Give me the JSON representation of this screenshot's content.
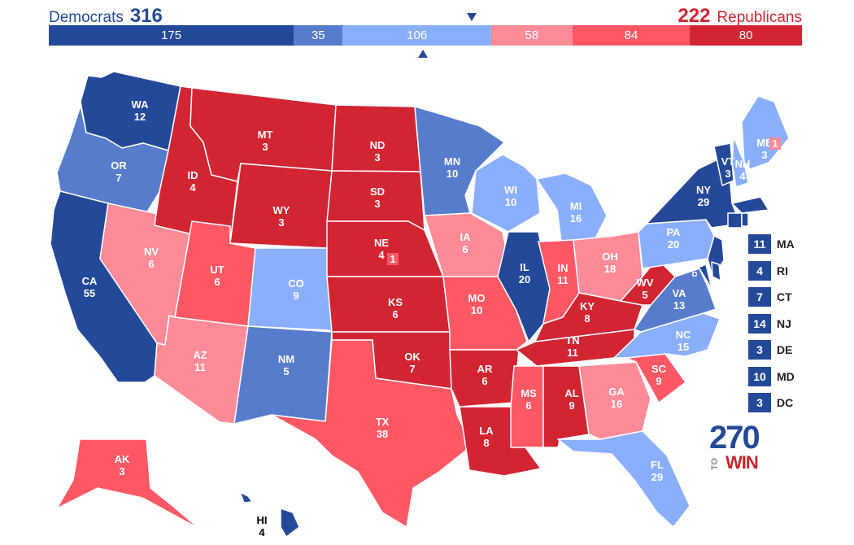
{
  "header": {
    "dem_label": "Democrats",
    "dem_total": "316",
    "rep_total": "222",
    "rep_label": "Republicans"
  },
  "bar_segments": [
    {
      "value": 175,
      "label": "175",
      "color": "#244999"
    },
    {
      "value": 35,
      "label": "35",
      "color": "#577CCC"
    },
    {
      "value": 106,
      "label": "106",
      "color": "#8AAFFF"
    },
    {
      "value": 58,
      "label": "58",
      "color": "#FF8B98"
    },
    {
      "value": 84,
      "label": "84",
      "color": "#FF5865"
    },
    {
      "value": 80,
      "label": "80",
      "color": "#D22532"
    }
  ],
  "states": [
    {
      "abbr": "WA",
      "ev": "12",
      "rating": "safe-d",
      "color": "#244999"
    },
    {
      "abbr": "OR",
      "ev": "7",
      "rating": "likely-d",
      "color": "#577CCC"
    },
    {
      "abbr": "CA",
      "ev": "55",
      "rating": "safe-d",
      "color": "#244999"
    },
    {
      "abbr": "NV",
      "ev": "6",
      "rating": "leans-r",
      "color": "#FF8B98"
    },
    {
      "abbr": "ID",
      "ev": "4",
      "rating": "safe-r",
      "color": "#D22532"
    },
    {
      "abbr": "MT",
      "ev": "3",
      "rating": "safe-r",
      "color": "#D22532"
    },
    {
      "abbr": "WY",
      "ev": "3",
      "rating": "safe-r",
      "color": "#D22532"
    },
    {
      "abbr": "UT",
      "ev": "6",
      "rating": "likely-r",
      "color": "#FF5865"
    },
    {
      "abbr": "AZ",
      "ev": "11",
      "rating": "leans-r",
      "color": "#FF8B98"
    },
    {
      "abbr": "CO",
      "ev": "9",
      "rating": "leans-d",
      "color": "#8AAFFF"
    },
    {
      "abbr": "NM",
      "ev": "5",
      "rating": "likely-d",
      "color": "#577CCC"
    },
    {
      "abbr": "ND",
      "ev": "3",
      "rating": "safe-r",
      "color": "#D22532"
    },
    {
      "abbr": "SD",
      "ev": "3",
      "rating": "safe-r",
      "color": "#D22532"
    },
    {
      "abbr": "NE",
      "ev": "4",
      "rating": "safe-r",
      "color": "#D22532"
    },
    {
      "abbr": "KS",
      "ev": "6",
      "rating": "safe-r",
      "color": "#D22532"
    },
    {
      "abbr": "OK",
      "ev": "7",
      "rating": "safe-r",
      "color": "#D22532"
    },
    {
      "abbr": "TX",
      "ev": "38",
      "rating": "likely-r",
      "color": "#FF5865"
    },
    {
      "abbr": "MN",
      "ev": "10",
      "rating": "likely-d",
      "color": "#577CCC"
    },
    {
      "abbr": "IA",
      "ev": "6",
      "rating": "leans-r",
      "color": "#FF8B98"
    },
    {
      "abbr": "MO",
      "ev": "10",
      "rating": "likely-r",
      "color": "#FF5865"
    },
    {
      "abbr": "AR",
      "ev": "6",
      "rating": "safe-r",
      "color": "#D22532"
    },
    {
      "abbr": "LA",
      "ev": "8",
      "rating": "safe-r",
      "color": "#D22532"
    },
    {
      "abbr": "WI",
      "ev": "10",
      "rating": "leans-d",
      "color": "#8AAFFF"
    },
    {
      "abbr": "IL",
      "ev": "20",
      "rating": "safe-d",
      "color": "#244999"
    },
    {
      "abbr": "MI",
      "ev": "16",
      "rating": "leans-d",
      "color": "#8AAFFF"
    },
    {
      "abbr": "IN",
      "ev": "11",
      "rating": "likely-r",
      "color": "#FF5865"
    },
    {
      "abbr": "OH",
      "ev": "18",
      "rating": "leans-r",
      "color": "#FF8B98"
    },
    {
      "abbr": "KY",
      "ev": "8",
      "rating": "safe-r",
      "color": "#D22532"
    },
    {
      "abbr": "TN",
      "ev": "11",
      "rating": "safe-r",
      "color": "#D22532"
    },
    {
      "abbr": "MS",
      "ev": "6",
      "rating": "likely-r",
      "color": "#FF5865"
    },
    {
      "abbr": "AL",
      "ev": "9",
      "rating": "safe-r",
      "color": "#D22532"
    },
    {
      "abbr": "GA",
      "ev": "16",
      "rating": "leans-r",
      "color": "#FF8B98"
    },
    {
      "abbr": "FL",
      "ev": "29",
      "rating": "leans-d",
      "color": "#8AAFFF"
    },
    {
      "abbr": "SC",
      "ev": "9",
      "rating": "likely-r",
      "color": "#FF5865"
    },
    {
      "abbr": "NC",
      "ev": "15",
      "rating": "leans-d",
      "color": "#8AAFFF"
    },
    {
      "abbr": "VA",
      "ev": "13",
      "rating": "likely-d",
      "color": "#577CCC"
    },
    {
      "abbr": "WV",
      "ev": "5",
      "rating": "safe-r",
      "color": "#D22532"
    },
    {
      "abbr": "PA",
      "ev": "20",
      "rating": "leans-d",
      "color": "#8AAFFF"
    },
    {
      "abbr": "NY",
      "ev": "29",
      "rating": "safe-d",
      "color": "#244999"
    },
    {
      "abbr": "VT",
      "ev": "3",
      "rating": "safe-d",
      "color": "#244999"
    },
    {
      "abbr": "NH",
      "ev": "4",
      "rating": "leans-d",
      "color": "#8AAFFF"
    },
    {
      "abbr": "ME",
      "ev": "3",
      "rating": "leans-d",
      "color": "#8AAFFF"
    },
    {
      "abbr": "AK",
      "ev": "3",
      "rating": "likely-r",
      "color": "#FF5865"
    },
    {
      "abbr": "HI",
      "ev": "4",
      "rating": "safe-d",
      "color": "#244999"
    }
  ],
  "district_boxes": [
    {
      "label": "1",
      "state": "NE",
      "color": "#FF5865"
    },
    {
      "label": "1",
      "state": "ME",
      "color": "#FF8B98"
    }
  ],
  "small_states": [
    {
      "abbr": "MA",
      "ev": "11",
      "color": "#244999"
    },
    {
      "abbr": "RI",
      "ev": "4",
      "color": "#244999"
    },
    {
      "abbr": "CT",
      "ev": "7",
      "color": "#244999"
    },
    {
      "abbr": "NJ",
      "ev": "14",
      "color": "#244999"
    },
    {
      "abbr": "DE",
      "ev": "3",
      "color": "#244999"
    },
    {
      "abbr": "MD",
      "ev": "10",
      "color": "#244999"
    },
    {
      "abbr": "DC",
      "ev": "3",
      "color": "#244999"
    }
  ],
  "logo": {
    "num": "270",
    "to": "TO",
    "win": "WIN"
  }
}
